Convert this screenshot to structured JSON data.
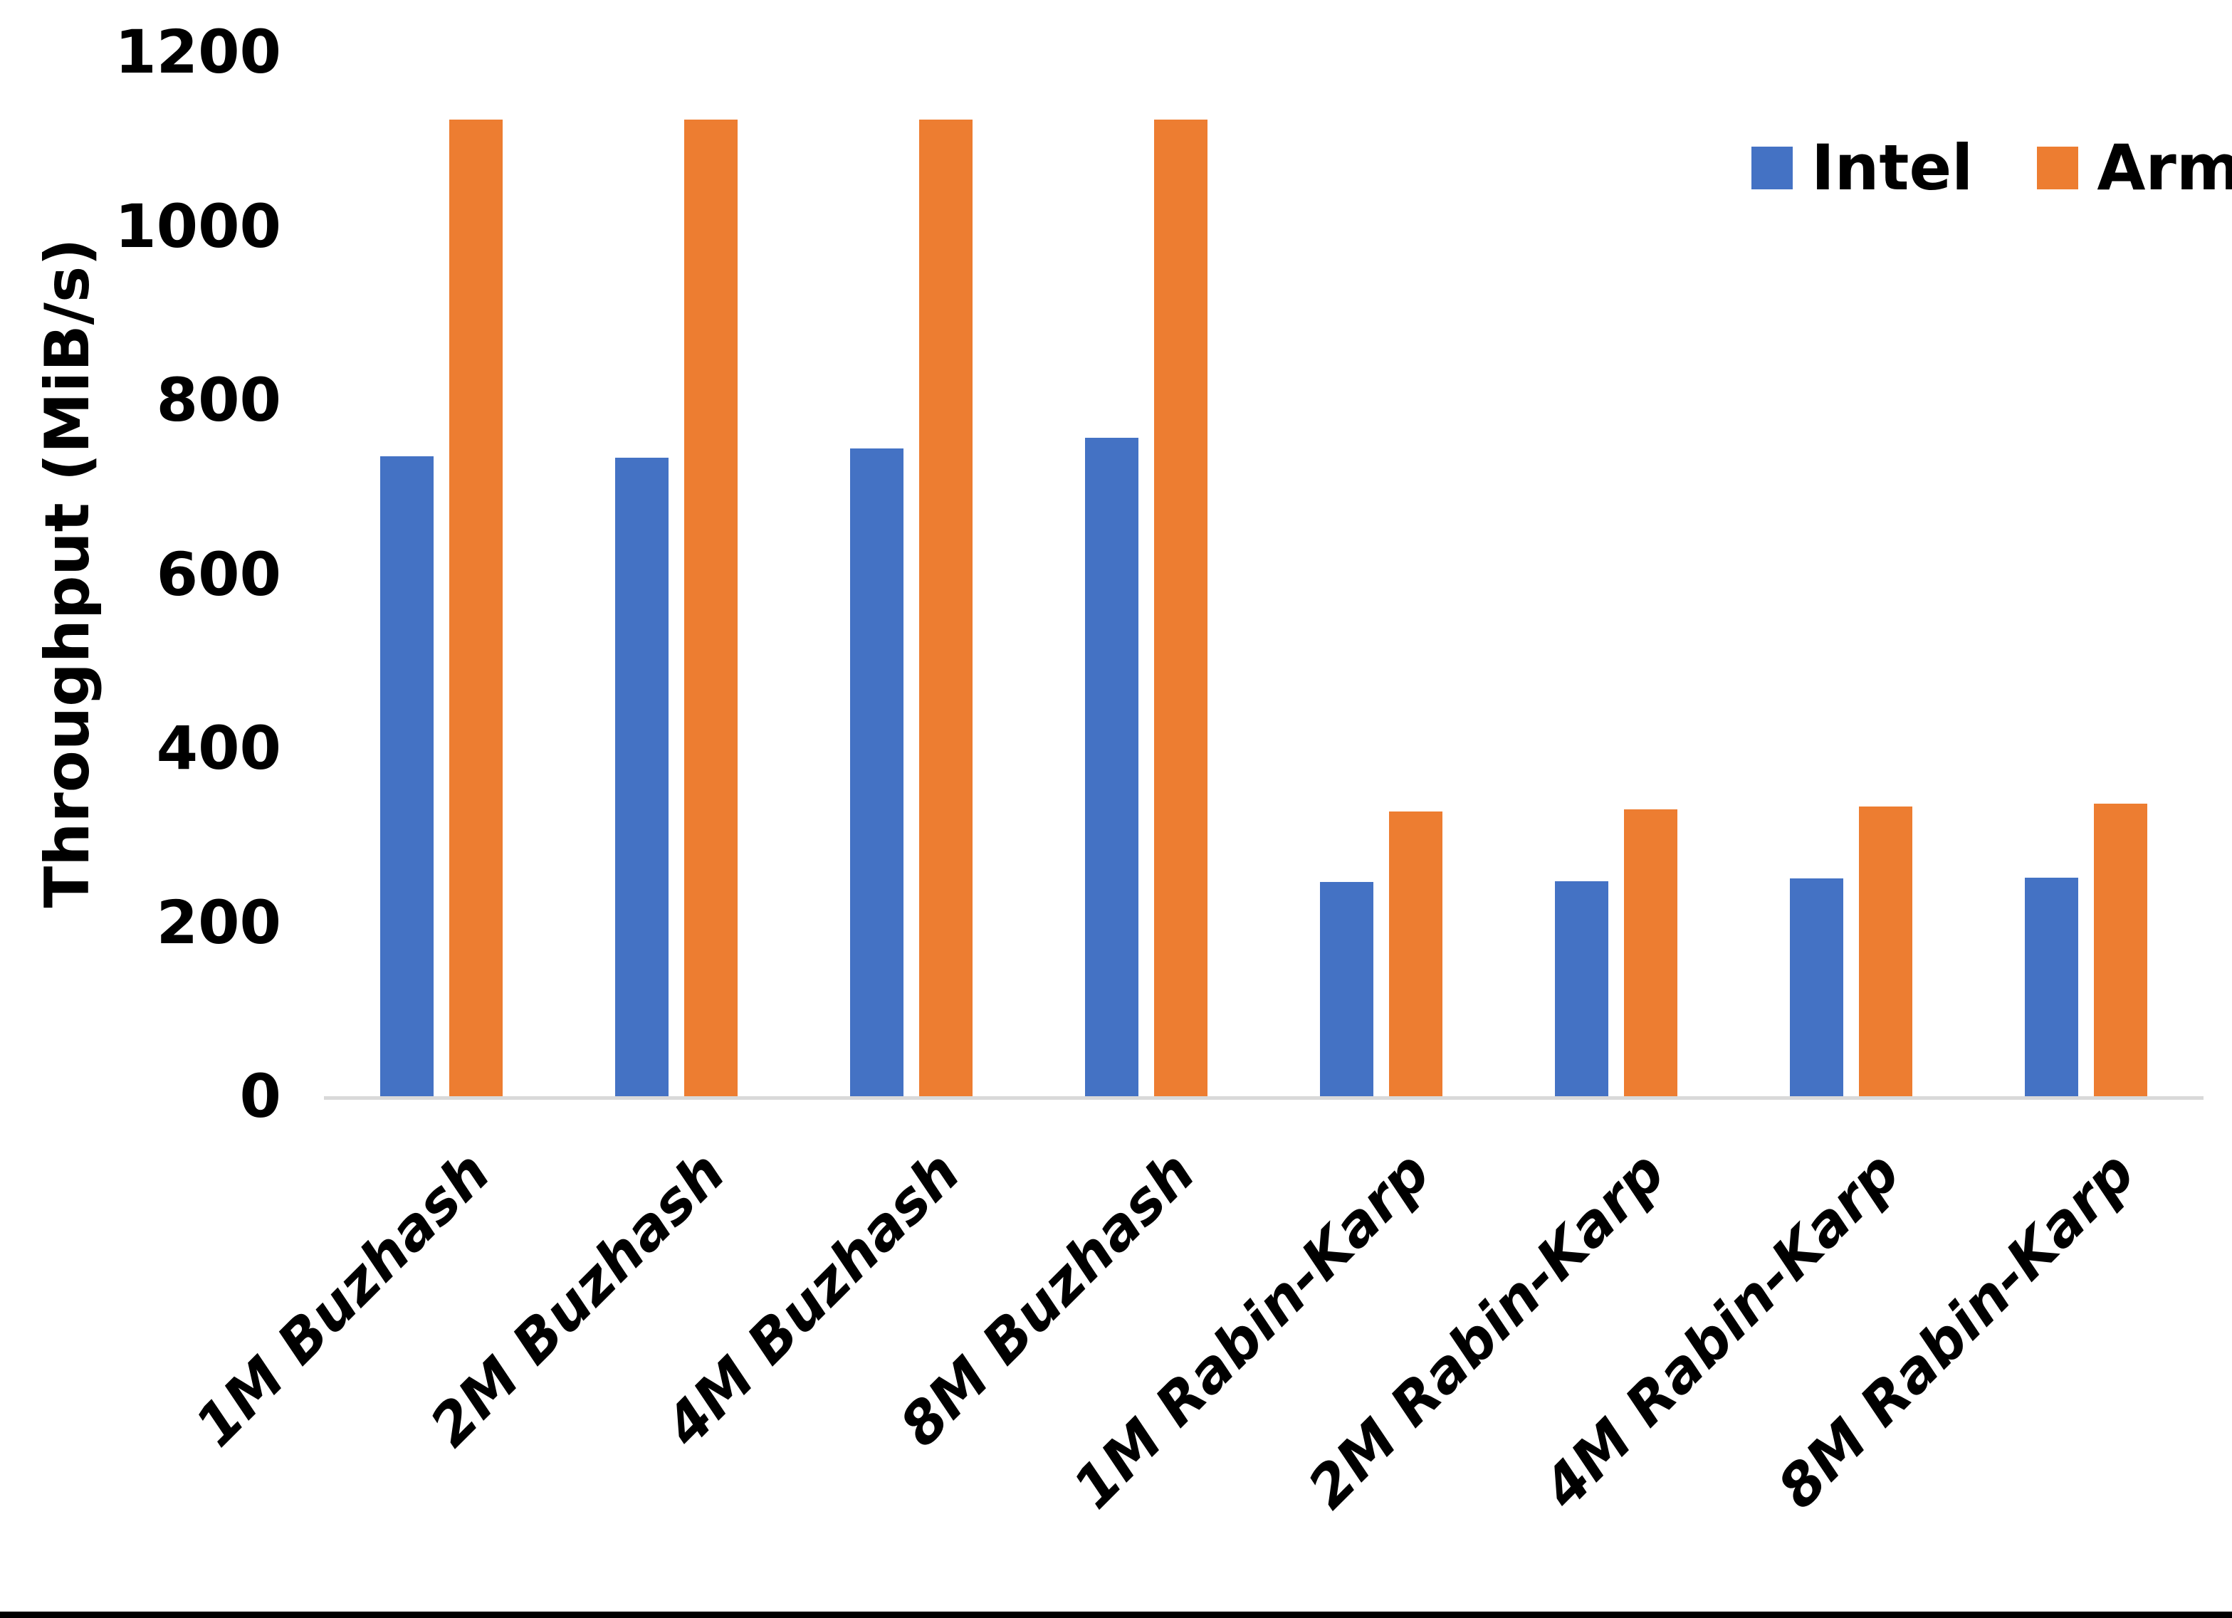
{
  "chart_data": {
    "type": "bar",
    "title": "",
    "xlabel": "",
    "ylabel": "Throughput (MiB/s)",
    "ylim": [
      0,
      1200
    ],
    "yticks": [
      0,
      200,
      400,
      600,
      800,
      1000,
      1200
    ],
    "grid": false,
    "legend_position": "top-right",
    "categories": [
      "1M Buzhash",
      "2M Buzhash",
      "4M Buzhash",
      "8M Buzhash",
      "1M Rabin-Karp",
      "2M Rabin-Karp",
      "4M Rabin-Karp",
      "8M Rabin-Karp"
    ],
    "series": [
      {
        "name": "Intel",
        "color": "#4472C4",
        "values": [
          735,
          734,
          744,
          757,
          246,
          247,
          250,
          251
        ]
      },
      {
        "name": "Arm",
        "color": "#ED7D31",
        "values": [
          1122,
          1122,
          1122,
          1122,
          327,
          330,
          333,
          336
        ]
      }
    ],
    "colors": {
      "axis_line": "#D9D9D9",
      "text": "#000000",
      "background": "#FFFFFF",
      "bottom_frame": "#000000"
    }
  }
}
